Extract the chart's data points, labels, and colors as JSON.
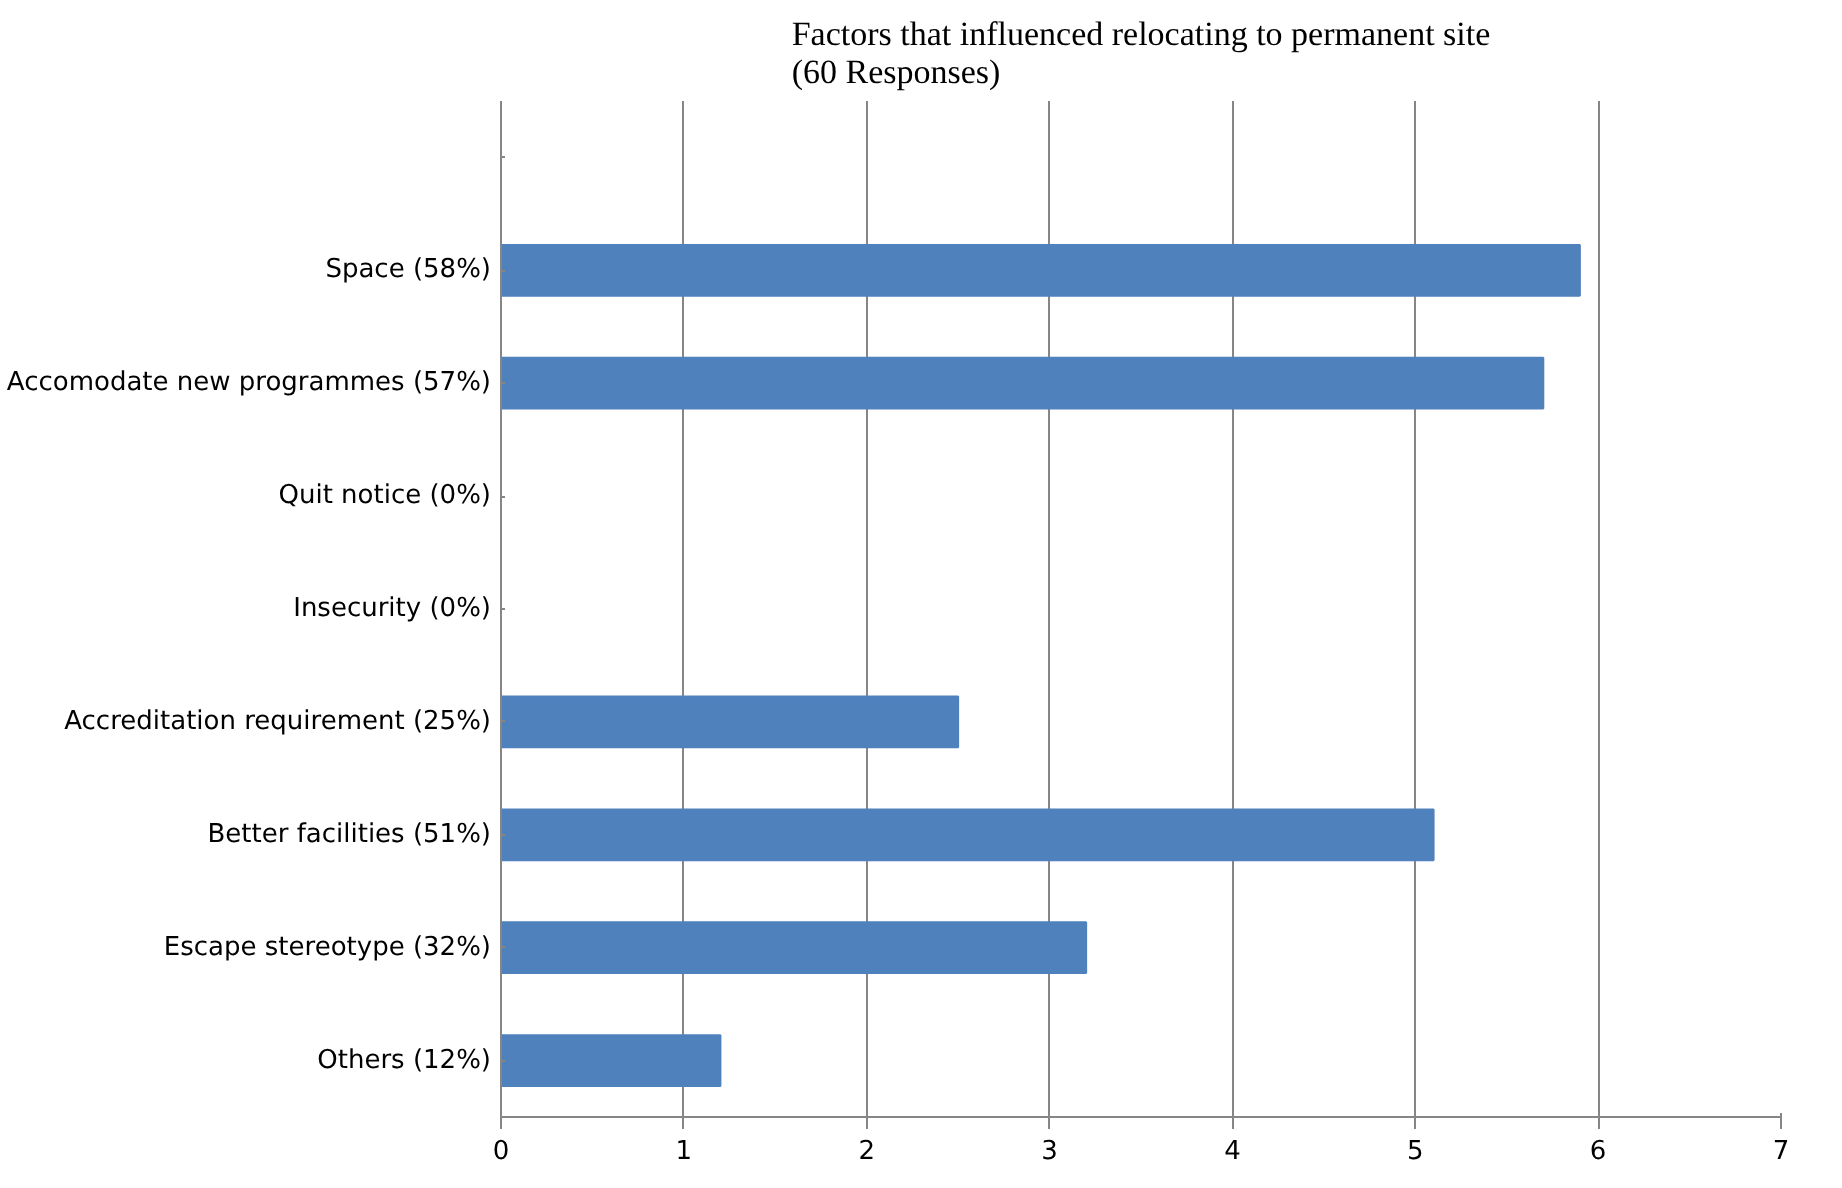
{
  "chart_data": {
    "type": "bar",
    "orientation": "horizontal",
    "title": "Factors that influenced relocating to permanent site (60 Responses)",
    "categories": [
      null,
      "Space (58%)",
      "Accomodate new programmes (57%)",
      "Quit notice (0%)",
      "Insecurity (0%)",
      "Accreditation requirement (25%)",
      "Better facilities (51%)",
      "Escape stereotype (32%)",
      "Others (12%)"
    ],
    "values": [
      null,
      5.9,
      5.7,
      0,
      0,
      2.5,
      5.1,
      3.2,
      1.2
    ],
    "color": "#4f81bd",
    "xlim": [
      0,
      7
    ],
    "xticks": [
      0,
      1,
      2,
      3,
      4,
      5,
      6,
      7
    ],
    "grid": "x"
  }
}
